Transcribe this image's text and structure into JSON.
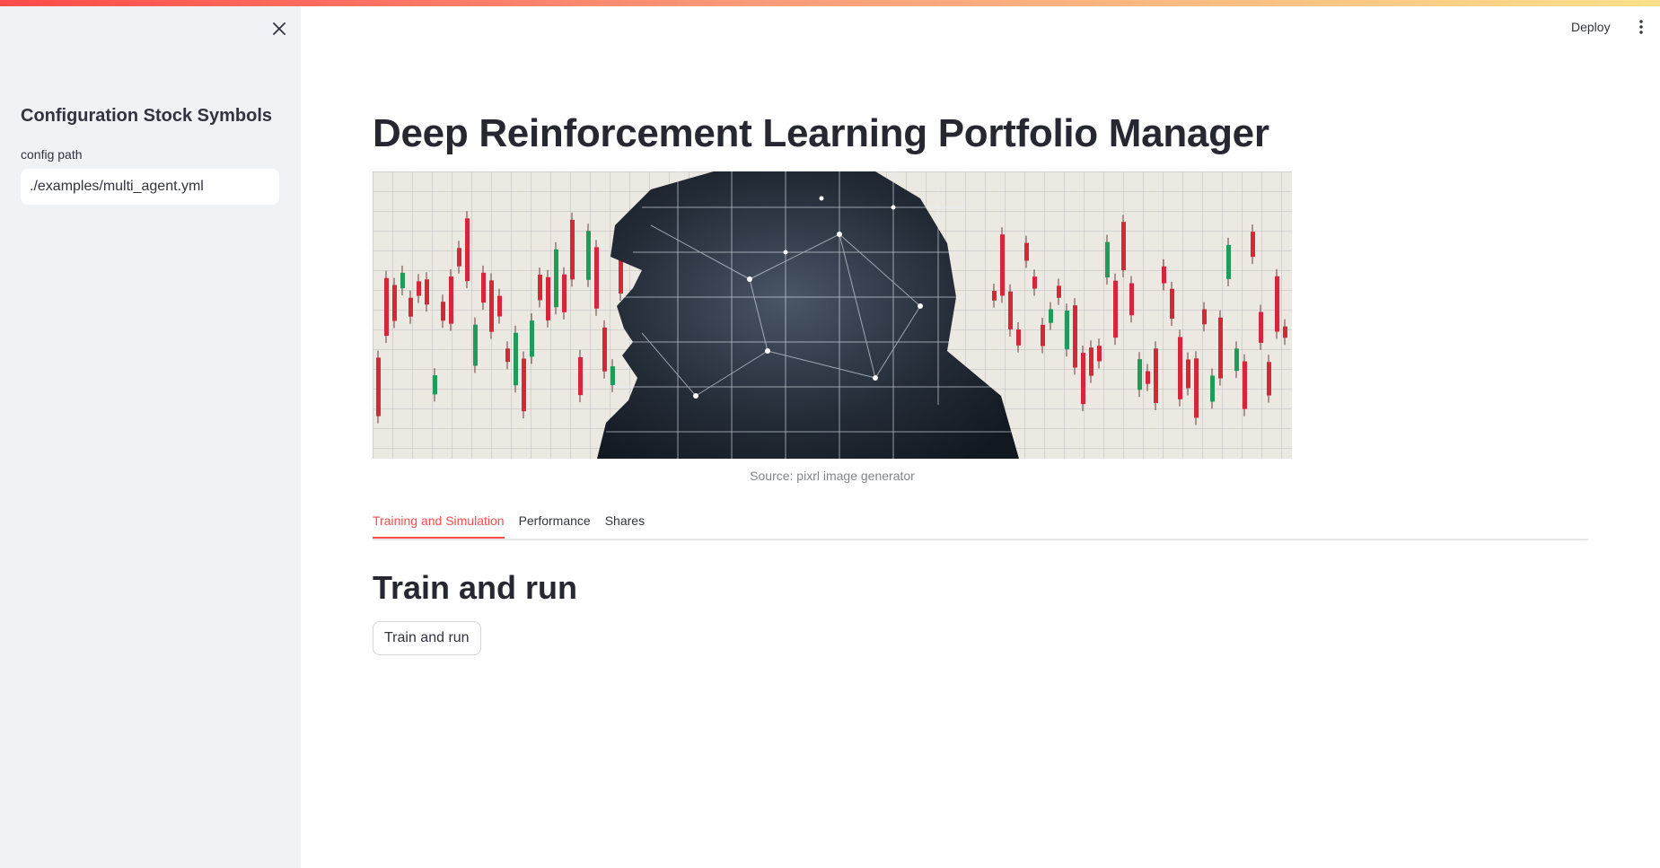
{
  "sidebar": {
    "heading": "Configuration Stock Symbols",
    "config_label": "config path",
    "config_value": "./examples/multi_agent.yml",
    "close_icon": "close-icon"
  },
  "header": {
    "deploy_label": "Deploy",
    "menu_icon": "kebab-menu-icon"
  },
  "main": {
    "title": "Deep Reinforcement Learning Portfolio Manager",
    "hero_image_caption": "Source: pixrl image generator",
    "tabs": [
      {
        "label": "Training and Simulation",
        "active": true
      },
      {
        "label": "Performance",
        "active": false
      },
      {
        "label": "Shares",
        "active": false
      }
    ],
    "section_title": "Train and run",
    "train_button_label": "Train and run"
  },
  "colors": {
    "accent": "#ff4b4b",
    "sidebar_bg": "#f0f2f6",
    "text": "#31333f"
  }
}
